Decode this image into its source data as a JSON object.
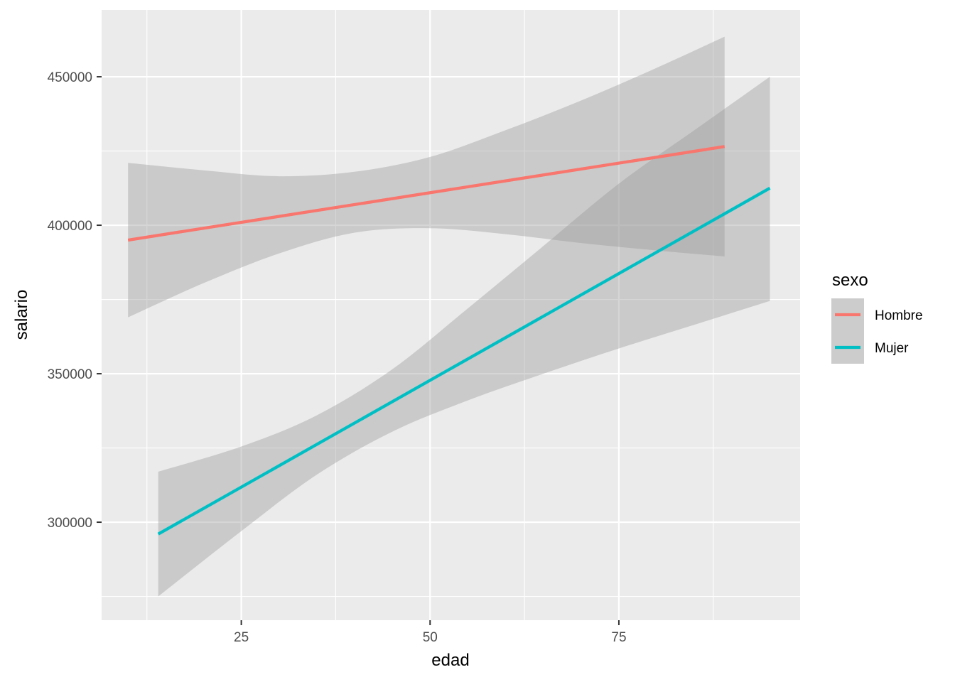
{
  "chart_data": {
    "type": "line",
    "xlabel": "edad",
    "ylabel": "salario",
    "xlim": [
      6.5,
      99
    ],
    "ylim": [
      267000,
      472500
    ],
    "x_ticks": [
      25,
      50,
      75
    ],
    "x_tick_labels": [
      "25",
      "50",
      "75"
    ],
    "y_ticks": [
      300000,
      350000,
      400000,
      450000
    ],
    "y_tick_labels": [
      "300000",
      "350000",
      "400000",
      "450000"
    ],
    "grid": true,
    "legend": {
      "title": "sexo",
      "position": "right"
    },
    "series": [
      {
        "name": "Hombre",
        "color": "#F8766D",
        "x": [
          10,
          89
        ],
        "y": [
          395000,
          426500
        ],
        "ribbon": {
          "x": [
            10,
            20,
            30,
            40,
            50,
            60,
            70,
            80,
            89
          ],
          "lower": [
            369000,
            380500,
            390500,
            397500,
            399000,
            397000,
            394000,
            391500,
            389500
          ],
          "upper": [
            421000,
            418500,
            416500,
            418000,
            423000,
            432000,
            442000,
            453000,
            463500
          ]
        }
      },
      {
        "name": "Mujer",
        "color": "#00BFC4",
        "x": [
          14,
          95
        ],
        "y": [
          296000,
          412500
        ],
        "ribbon": {
          "x": [
            14,
            25,
            35,
            45,
            55,
            65,
            75,
            85,
            95
          ],
          "lower": [
            275000,
            297000,
            316000,
            330500,
            341000,
            350000,
            358500,
            366500,
            374500
          ],
          "upper": [
            317000,
            325500,
            336000,
            351500,
            372000,
            393000,
            414000,
            432000,
            450000
          ]
        }
      }
    ]
  }
}
